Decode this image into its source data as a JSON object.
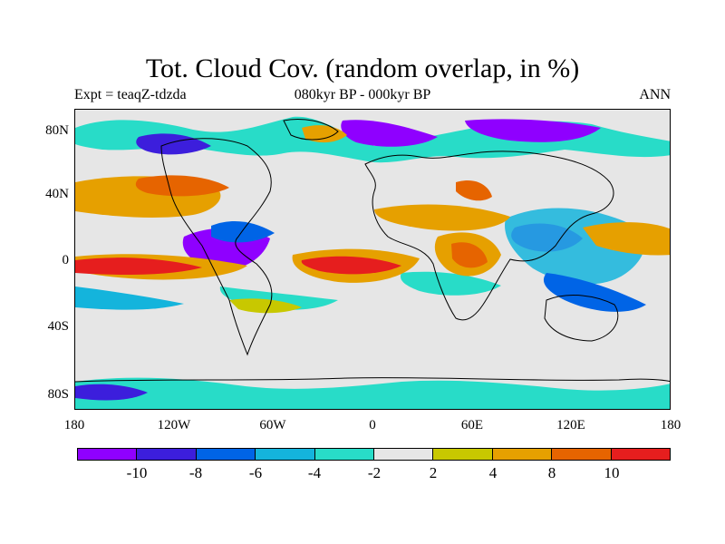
{
  "title": "Tot. Cloud Cov. (random overlap, in %)",
  "subtitle_left": "Expt = teaqZ-tdzda",
  "subtitle_center": "080kyr BP - 000kyr BP",
  "subtitle_right": "ANN",
  "x_ticks": [
    "180",
    "120W",
    "60W",
    "0",
    "60E",
    "120E",
    "180"
  ],
  "y_ticks": [
    "80N",
    "40N",
    "0",
    "40S",
    "80S"
  ],
  "colorbar": {
    "colors": [
      "#8f00ff",
      "#3c1edc",
      "#0064e6",
      "#14b4dc",
      "#28dcc8",
      "#e6e6e6",
      "#c8c800",
      "#e6a000",
      "#e66400",
      "#e61e1e"
    ],
    "labels": [
      "-10",
      "-8",
      "-6",
      "-4",
      "-2",
      "2",
      "4",
      "8",
      "10"
    ]
  },
  "colors": {
    "background_neutral": "#e6e6e6",
    "coastline": "#000000"
  }
}
